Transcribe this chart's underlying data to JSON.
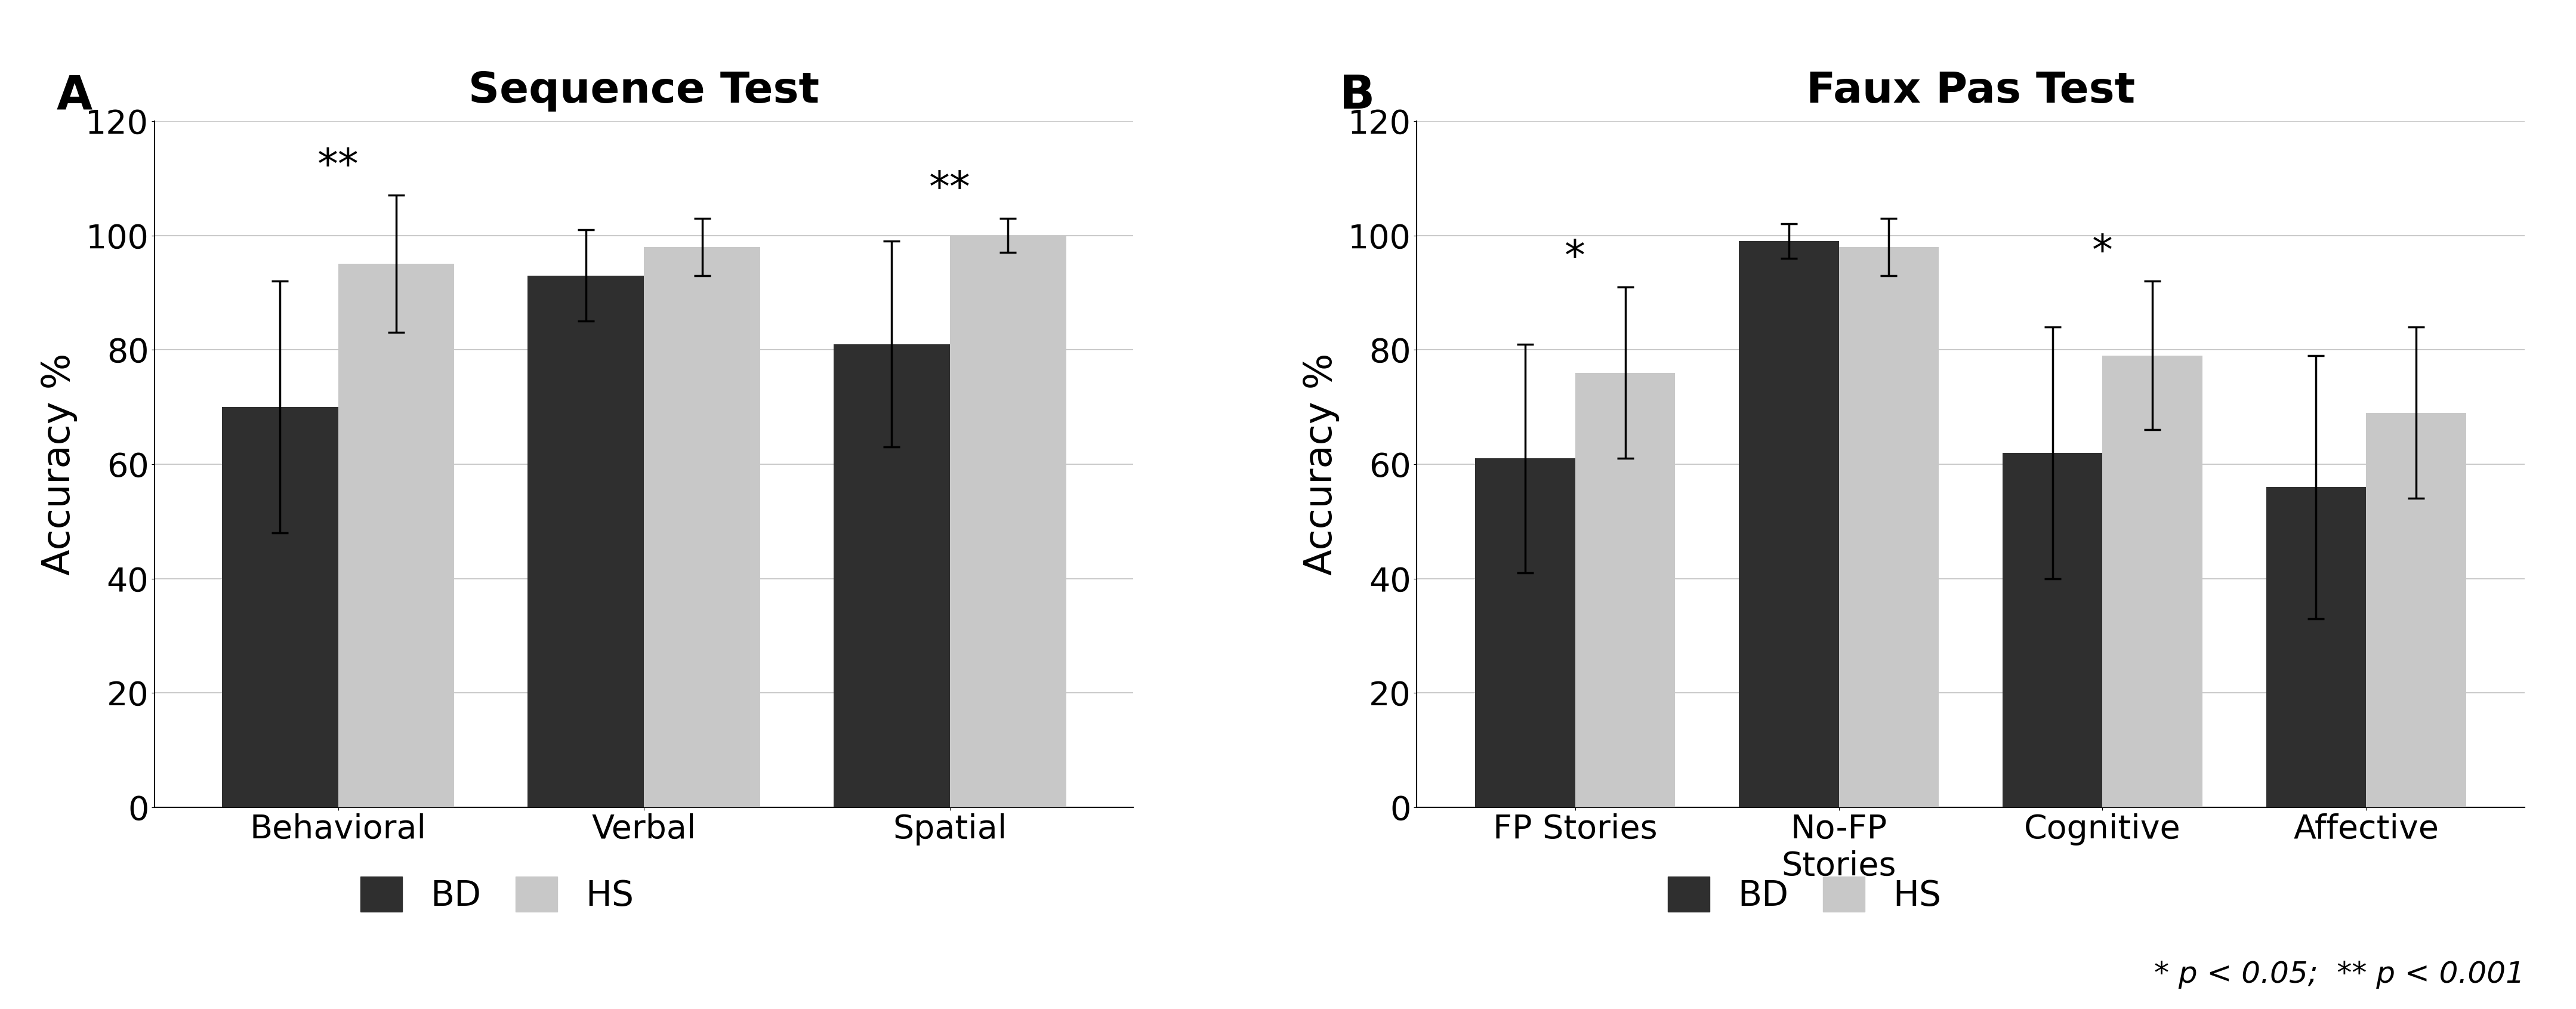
{
  "panel_A": {
    "title": "Sequence Test",
    "label": "A",
    "categories": [
      "Behavioral",
      "Verbal",
      "Spatial"
    ],
    "bd_values": [
      70,
      93,
      81
    ],
    "hs_values": [
      95,
      98,
      100
    ],
    "bd_errors": [
      22,
      8,
      18
    ],
    "hs_errors": [
      12,
      5,
      3
    ],
    "significance": [
      "**",
      "",
      "**"
    ],
    "ylim": [
      0,
      120
    ],
    "yticks": [
      0,
      20,
      40,
      60,
      80,
      100,
      120
    ],
    "ylabel": "Accuracy %"
  },
  "panel_B": {
    "title": "Faux Pas Test",
    "label": "B",
    "categories": [
      "FP Stories",
      "No-FP\nStories",
      "Cognitive",
      "Affective"
    ],
    "bd_values": [
      61,
      99,
      62,
      56
    ],
    "hs_values": [
      76,
      98,
      79,
      69
    ],
    "bd_errors": [
      20,
      3,
      22,
      23
    ],
    "hs_errors": [
      15,
      5,
      13,
      15
    ],
    "significance": [
      "*",
      "",
      "*",
      ""
    ],
    "ylim": [
      0,
      120
    ],
    "yticks": [
      0,
      20,
      40,
      60,
      80,
      100,
      120
    ],
    "ylabel": "Accuracy %"
  },
  "bd_color": "#2f2f2f",
  "hs_color": "#c8c8c8",
  "bar_width": 0.38,
  "legend_labels": [
    "BD",
    "HS"
  ],
  "note": "* p < 0.05;  ** p < 0.001",
  "title_fontsize": 52,
  "tick_fontsize": 40,
  "ylabel_fontsize": 46,
  "legend_fontsize": 42,
  "sig_fontsize": 50,
  "note_fontsize": 36,
  "panel_label_fontsize": 56
}
